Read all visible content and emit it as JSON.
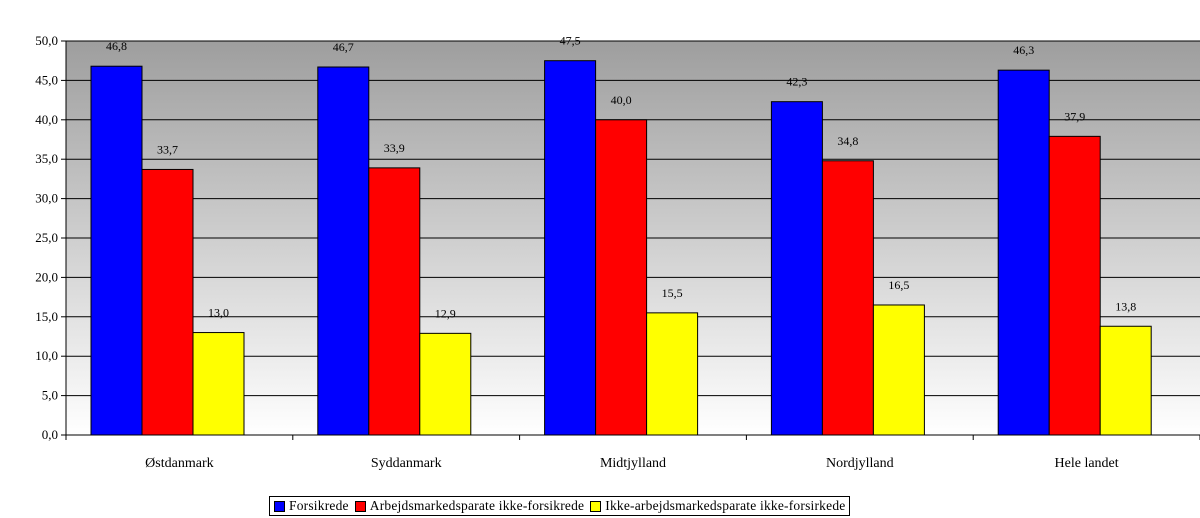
{
  "chart_data": {
    "type": "bar",
    "categories": [
      "Østdanmark",
      "Syddanmark",
      "Midtjylland",
      "Nordjylland",
      "Hele landet"
    ],
    "series": [
      {
        "name": "Forsikrede",
        "color": "#0000FF",
        "values": [
          46.8,
          46.7,
          47.5,
          42.3,
          46.3
        ],
        "labels": [
          "46,8",
          "46,7",
          "47,5",
          "42,3",
          "46,3"
        ]
      },
      {
        "name": "Arbejdsmarkedsparate ikke-forsikrede",
        "color": "#FF0000",
        "values": [
          33.7,
          33.9,
          40.0,
          34.8,
          37.9
        ],
        "labels": [
          "33,7",
          "33,9",
          "40,0",
          "34,8",
          "37,9"
        ]
      },
      {
        "name": "Ikke-arbejdsmarkedsparate ikke-forsirkede",
        "color": "#FFFF00",
        "values": [
          13.0,
          12.9,
          15.5,
          16.5,
          13.8
        ],
        "labels": [
          "13,0",
          "12,9",
          "15,5",
          "16,5",
          "13,8"
        ]
      }
    ],
    "yticks": [
      "0,0",
      "5,0",
      "10,0",
      "15,0",
      "20,0",
      "25,0",
      "30,0",
      "35,0",
      "40,0",
      "45,0",
      "50,0"
    ],
    "ylim": [
      0,
      50
    ],
    "ystep": 5,
    "grid": true,
    "legend_position": "bottom",
    "title": "",
    "xlabel": "",
    "ylabel": ""
  }
}
